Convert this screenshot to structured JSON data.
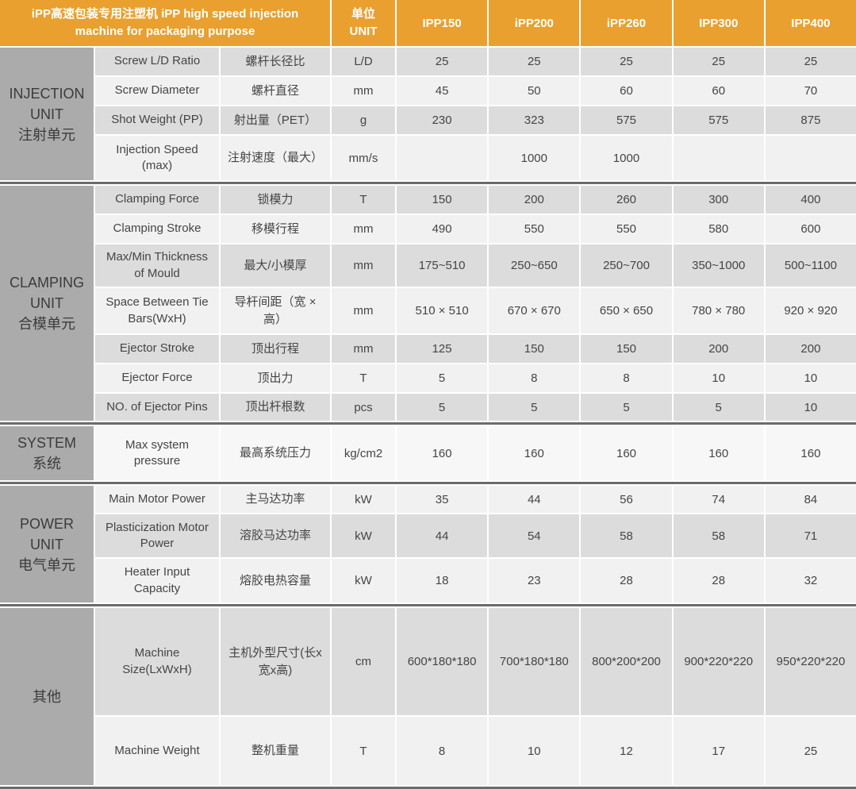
{
  "colors": {
    "orange": "#E9A02F",
    "sidebar_gray": "#ABABAB",
    "row_dark": "#DCDCDC",
    "row_light": "#F1F1F1",
    "row_lighter": "#F7F7F7",
    "divider": "#6B6B6B",
    "text_dark": "#3B3B3B",
    "text_body": "#454545"
  },
  "header": {
    "title": "iPP高速包装专用注塑机 iPP high speed injection machine for packaging purpose",
    "unit_label": "单位\nUNIT",
    "models": [
      "IPP150",
      "iPP200",
      "iPP260",
      "IPP300",
      "IPP400"
    ]
  },
  "sections": [
    {
      "label_en": "INJECTION\nUNIT",
      "label_cn": "注射单元",
      "rows": [
        {
          "en": "Screw L/D Ratio",
          "cn": "螺杆长径比",
          "unit": "L/D",
          "shade": "dark",
          "values": [
            "25",
            "25",
            "25",
            "25",
            "25"
          ]
        },
        {
          "en": "Screw Diameter",
          "cn": "螺杆直径",
          "unit": "mm",
          "shade": "light",
          "values": [
            "45",
            "50",
            "60",
            "60",
            "70"
          ]
        },
        {
          "en": "Shot Weight (PP)",
          "cn": "射出量（PET）",
          "unit": "g",
          "shade": "dark",
          "values": [
            "230",
            "323",
            "575",
            "575",
            "875"
          ]
        },
        {
          "en": "Injection Speed (max)",
          "cn": "注射速度（最大）",
          "unit": "mm/s",
          "shade": "light",
          "values": [
            "",
            "1000",
            "1000",
            "",
            ""
          ]
        }
      ]
    },
    {
      "label_en": "CLAMPING\nUNIT",
      "label_cn": "合模单元",
      "rows": [
        {
          "en": "Clamping Force",
          "cn": "锁模力",
          "unit": "T",
          "shade": "dark",
          "values": [
            "150",
            "200",
            "260",
            "300",
            "400"
          ]
        },
        {
          "en": "Clamping Stroke",
          "cn": "移模行程",
          "unit": "mm",
          "shade": "light",
          "values": [
            "490",
            "550",
            "550",
            "580",
            "600"
          ]
        },
        {
          "en": "Max/Min Thickness of Mould",
          "cn": "最大/小模厚",
          "unit": "mm",
          "shade": "dark",
          "values": [
            "175~510",
            "250~650",
            "250~700",
            "350~1000",
            "500~1100"
          ]
        },
        {
          "en": "Space Between Tie Bars(WxH)",
          "cn": "导杆间距（宽 × 高）",
          "unit": "mm",
          "shade": "light",
          "values": [
            "510 × 510",
            "670 × 670",
            "650 × 650",
            "780 × 780",
            "920 × 920"
          ]
        },
        {
          "en": "Ejector Stroke",
          "cn": "顶出行程",
          "unit": "mm",
          "shade": "dark",
          "values": [
            "125",
            "150",
            "150",
            "200",
            "200"
          ]
        },
        {
          "en": "Ejector Force",
          "cn": "顶出力",
          "unit": "T",
          "shade": "light",
          "values": [
            "5",
            "8",
            "8",
            "10",
            "10"
          ]
        },
        {
          "en": "NO. of Ejector Pins",
          "cn": "顶出杆根数",
          "unit": "pcs",
          "shade": "dark",
          "values": [
            "5",
            "5",
            "5",
            "5",
            "10"
          ]
        }
      ]
    },
    {
      "label_en": "SYSTEM",
      "label_cn": "系统",
      "rows": [
        {
          "en": "Max system pressure",
          "cn": "最高系统压力",
          "unit": "kg/cm2",
          "shade": "lighter",
          "values": [
            "160",
            "160",
            "160",
            "160",
            "160"
          ]
        }
      ]
    },
    {
      "label_en": "POWER\nUNIT",
      "label_cn": "电气单元",
      "rows": [
        {
          "en": "Main Motor Power",
          "cn": "主马达功率",
          "unit": "kW",
          "shade": "light",
          "values": [
            "35",
            "44",
            "56",
            "74",
            "84"
          ]
        },
        {
          "en": "Plasticization Motor Power",
          "cn": "溶胶马达功率",
          "unit": "kW",
          "shade": "dark",
          "values": [
            "44",
            "54",
            "58",
            "58",
            "71"
          ]
        },
        {
          "en": "Heater Input Capacity",
          "cn": "熔胶电热容量",
          "unit": "kW",
          "shade": "light",
          "values": [
            "18",
            "23",
            "28",
            "28",
            "32"
          ]
        }
      ]
    },
    {
      "label_en": "",
      "label_cn": "其他",
      "rows": [
        {
          "en": "Machine Size(LxWxH)",
          "cn": "主机外型尺寸(长x宽x高)",
          "unit": "cm",
          "shade": "dark",
          "values": [
            "600*180*180",
            "700*180*180",
            "800*200*200",
            "900*220*220",
            "950*220*220"
          ]
        },
        {
          "en": "Machine Weight",
          "cn": "整机重量",
          "unit": "T",
          "shade": "light",
          "values": [
            "8",
            "10",
            "12",
            "17",
            "25"
          ]
        }
      ]
    }
  ]
}
